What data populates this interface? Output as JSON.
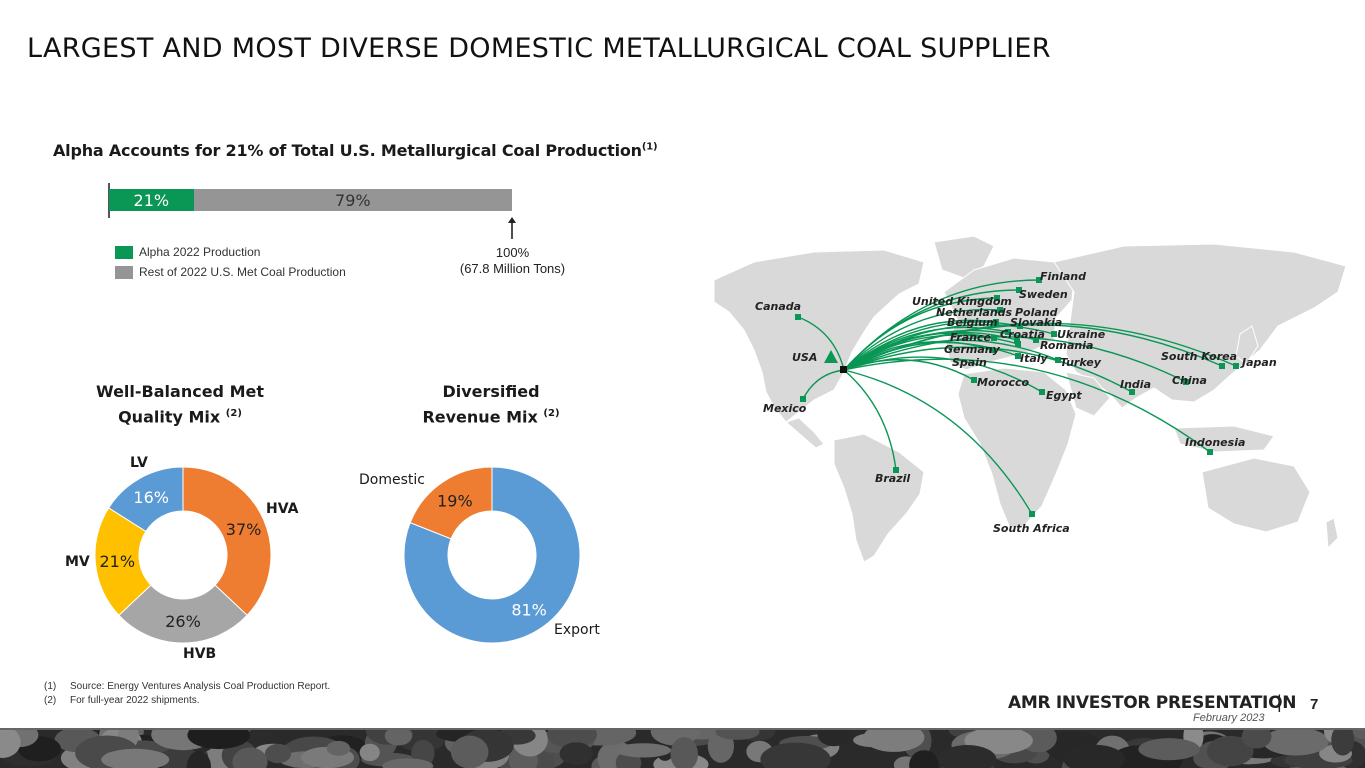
{
  "page": {
    "title": "LARGEST AND MOST DIVERSE DOMESTIC METALLURGICAL COAL SUPPLIER",
    "brand": "AMR INVESTOR PRESENTATION",
    "separator": "|",
    "date": "February 2023",
    "page_number": "7"
  },
  "colors": {
    "green": "#0a9655",
    "gray": "#959595",
    "orange": "#ef7d31",
    "light_gray": "#a6a6a6",
    "yellow": "#ffc000",
    "blue": "#5b9bd5",
    "map_land": "#d9d9d9",
    "route": "#0a9655"
  },
  "bar_section": {
    "title": "Alpha Accounts for 21% of Total U.S. Metallurgical Coal Production",
    "title_note": "(1)",
    "total_label_line1": "100%",
    "total_label_line2": "(67.8 Million Tons)"
  },
  "donut_left": {
    "title_line1": "Well-Balanced Met",
    "title_line2": "Quality Mix",
    "note": "(2)"
  },
  "donut_right": {
    "title_line1": "Diversified",
    "title_line2": "Revenue Mix",
    "note": "(2)"
  },
  "chart_data": [
    {
      "type": "bar",
      "orientation": "horizontal",
      "stacked": true,
      "categories": [
        ""
      ],
      "series": [
        {
          "name": "Alpha 2022 Production",
          "values": [
            21
          ],
          "label": "21%"
        },
        {
          "name": "Rest of 2022 U.S. Met Coal Production",
          "values": [
            79
          ],
          "label": "79%"
        }
      ],
      "xlim": [
        0,
        100
      ],
      "legend": "bottom-left"
    },
    {
      "type": "pie",
      "donut": true,
      "labels": [
        "HVA",
        "HVB",
        "MV",
        "LV"
      ],
      "values": [
        37,
        26,
        21,
        16
      ],
      "pct_labels": [
        "37%",
        "26%",
        "21%",
        "16%"
      ]
    },
    {
      "type": "pie",
      "donut": true,
      "labels": [
        "Export",
        "Domestic"
      ],
      "values": [
        81,
        19
      ],
      "pct_labels": [
        "81%",
        "19%"
      ]
    }
  ],
  "map": {
    "labels": {
      "finland": "Finland",
      "sweden": "Sweden",
      "uk": "United Kingdom",
      "netherlands": "Netherlands",
      "poland": "Poland",
      "belgium": "Belgium",
      "slovakia": "Slovakia",
      "france": "France",
      "croatia": "Croatia",
      "ukraine": "Ukraine",
      "germany": "Germany",
      "romania": "Romania",
      "spain": "Spain",
      "italy": "Italy",
      "turkey": "Turkey",
      "morocco": "Morocco",
      "egypt": "Egypt",
      "india": "India",
      "china": "China",
      "south_korea": "South Korea",
      "japan": "Japan",
      "indonesia": "Indonesia",
      "south_africa": "South Africa",
      "brazil": "Brazil",
      "canada": "Canada",
      "usa": "USA",
      "mexico": "Mexico"
    }
  },
  "footnotes": [
    {
      "num": "(1)",
      "text": "Source: Energy Ventures Analysis Coal Production Report."
    },
    {
      "num": "(2)",
      "text": "For full-year 2022 shipments."
    }
  ]
}
